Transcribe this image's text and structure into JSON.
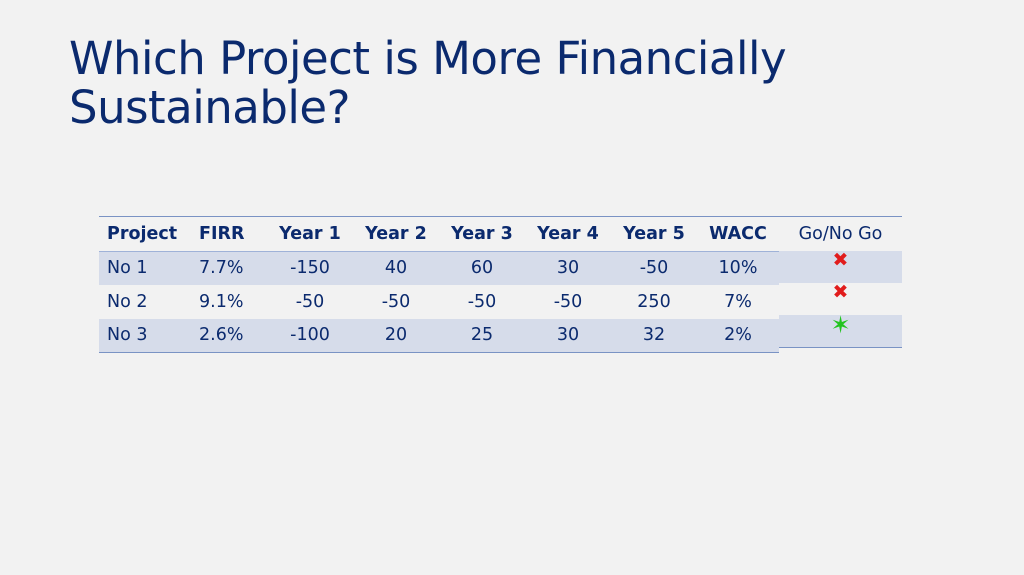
{
  "title": "Which Project is More Financially Sustainable?",
  "table": {
    "headers": [
      "Project",
      "FIRR",
      "Year 1",
      "Year 2",
      "Year 3",
      "Year 4",
      "Year 5",
      "WACC"
    ],
    "rows": [
      [
        "No 1",
        "7.7%",
        "-150",
        "40",
        "60",
        "30",
        "-50",
        "10%"
      ],
      [
        "No 2",
        "9.1%",
        "-50",
        "-50",
        "-50",
        "-50",
        "250",
        "7%"
      ],
      [
        "No 3",
        "2.6%",
        "-100",
        "20",
        "25",
        "30",
        "32",
        "2%"
      ]
    ]
  },
  "decision": {
    "header": "Go/No Go",
    "icons": [
      "cross-icon",
      "cross-icon",
      "star-icon"
    ],
    "colors": {
      "no_go": "#e11c1c",
      "go": "#22c41f"
    }
  },
  "colors": {
    "title": "#0b2a6e",
    "row_shade": "#d6dcea",
    "rule": "#7a93c4",
    "background": "#f2f2f2"
  }
}
